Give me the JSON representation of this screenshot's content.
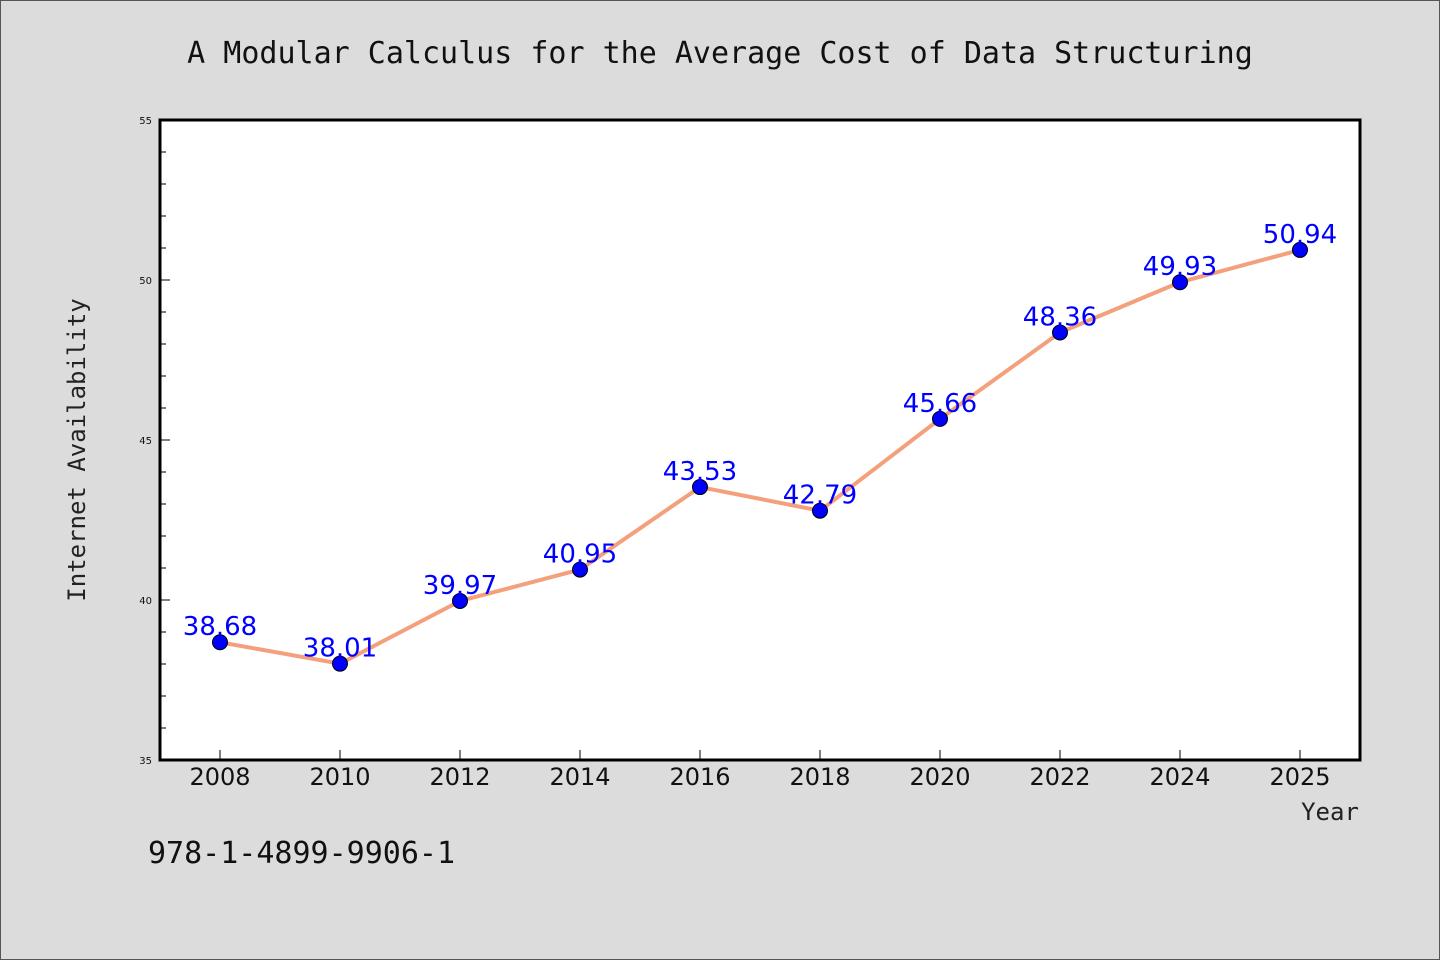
{
  "chart_data": {
    "type": "line",
    "title": "A Modular Calculus for the Average Cost of Data Structuring",
    "xlabel": "Year",
    "ylabel": "Internet Availability",
    "categories": [
      "2008",
      "2010",
      "2012",
      "2014",
      "2016",
      "2018",
      "2020",
      "2022",
      "2024",
      "2025"
    ],
    "series": [
      {
        "values": [
          38.68,
          38.01,
          39.97,
          40.95,
          43.53,
          42.79,
          45.66,
          48.36,
          49.93,
          50.94
        ],
        "labels": [
          "38.68",
          "38.01",
          "39.97",
          "40.95",
          "43.53",
          "42.79",
          "45.66",
          "48.36",
          "49.93",
          "50.94"
        ]
      }
    ],
    "ylim": [
      35,
      55
    ],
    "yticks": [
      "35",
      "40",
      "45",
      "50",
      "55"
    ],
    "grid": false,
    "line_color": "#f4a07c",
    "marker_color": "#0000ff",
    "label_color": "#0000ff",
    "background": "#dcdcdc",
    "plot_background": "#ffffff"
  },
  "footer": {
    "isbn": "978-1-4899-9906-1"
  }
}
